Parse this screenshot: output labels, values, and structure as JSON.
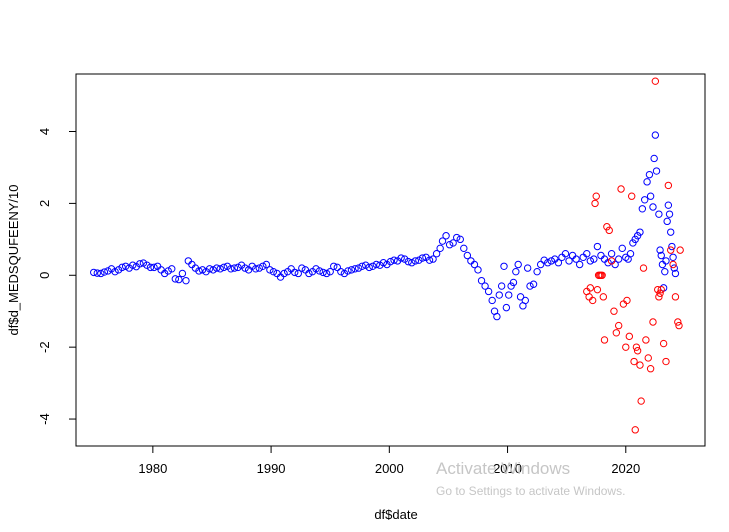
{
  "chart_data": {
    "type": "scatter",
    "title": "",
    "xlabel": "df$date",
    "ylabel": "df$d_MEDSQUFEENY/10",
    "xlim": [
      1973.5,
      2026.7
    ],
    "ylim": [
      -4.75,
      5.6
    ],
    "x_ticks": [
      1980,
      1990,
      2000,
      2010,
      2020
    ],
    "x_tick_labels": [
      "1980",
      "1990",
      "2000",
      "2010",
      "2020"
    ],
    "y_ticks": [
      -4,
      -2,
      0,
      2,
      4
    ],
    "y_tick_labels": [
      "-4",
      "-2",
      "0",
      "2",
      "4"
    ],
    "grid": false,
    "marker": "open-circle",
    "series": [
      {
        "color": "#0000ff",
        "points": [
          [
            1975.0,
            0.08
          ],
          [
            1975.3,
            0.06
          ],
          [
            1975.6,
            0.05
          ],
          [
            1975.9,
            0.09
          ],
          [
            1976.2,
            0.12
          ],
          [
            1976.5,
            0.18
          ],
          [
            1976.8,
            0.1
          ],
          [
            1977.1,
            0.15
          ],
          [
            1977.4,
            0.22
          ],
          [
            1977.7,
            0.25
          ],
          [
            1978.0,
            0.2
          ],
          [
            1978.3,
            0.28
          ],
          [
            1978.6,
            0.24
          ],
          [
            1978.9,
            0.32
          ],
          [
            1979.2,
            0.34
          ],
          [
            1979.5,
            0.28
          ],
          [
            1979.8,
            0.22
          ],
          [
            1980.1,
            0.22
          ],
          [
            1980.4,
            0.25
          ],
          [
            1980.7,
            0.15
          ],
          [
            1981.0,
            0.05
          ],
          [
            1981.3,
            0.12
          ],
          [
            1981.6,
            0.18
          ],
          [
            1981.9,
            -0.1
          ],
          [
            1982.2,
            -0.12
          ],
          [
            1982.5,
            0.05
          ],
          [
            1982.8,
            -0.15
          ],
          [
            1983.0,
            0.4
          ],
          [
            1983.3,
            0.3
          ],
          [
            1983.6,
            0.2
          ],
          [
            1983.9,
            0.12
          ],
          [
            1984.2,
            0.15
          ],
          [
            1984.5,
            0.1
          ],
          [
            1984.8,
            0.18
          ],
          [
            1985.1,
            0.15
          ],
          [
            1985.4,
            0.2
          ],
          [
            1985.7,
            0.18
          ],
          [
            1986.0,
            0.22
          ],
          [
            1986.3,
            0.25
          ],
          [
            1986.6,
            0.18
          ],
          [
            1986.9,
            0.2
          ],
          [
            1987.2,
            0.22
          ],
          [
            1987.5,
            0.28
          ],
          [
            1987.8,
            0.2
          ],
          [
            1988.1,
            0.15
          ],
          [
            1988.4,
            0.25
          ],
          [
            1988.7,
            0.18
          ],
          [
            1989.0,
            0.2
          ],
          [
            1989.3,
            0.25
          ],
          [
            1989.6,
            0.3
          ],
          [
            1989.9,
            0.15
          ],
          [
            1990.2,
            0.1
          ],
          [
            1990.5,
            0.05
          ],
          [
            1990.8,
            -0.05
          ],
          [
            1991.1,
            0.05
          ],
          [
            1991.4,
            0.1
          ],
          [
            1991.7,
            0.18
          ],
          [
            1992.0,
            0.08
          ],
          [
            1992.3,
            0.05
          ],
          [
            1992.6,
            0.2
          ],
          [
            1992.9,
            0.15
          ],
          [
            1993.2,
            0.05
          ],
          [
            1993.5,
            0.1
          ],
          [
            1993.8,
            0.18
          ],
          [
            1994.1,
            0.12
          ],
          [
            1994.4,
            0.08
          ],
          [
            1994.7,
            0.05
          ],
          [
            1995.0,
            0.1
          ],
          [
            1995.3,
            0.25
          ],
          [
            1995.6,
            0.22
          ],
          [
            1995.9,
            0.1
          ],
          [
            1996.2,
            0.05
          ],
          [
            1996.5,
            0.12
          ],
          [
            1996.8,
            0.15
          ],
          [
            1997.1,
            0.18
          ],
          [
            1997.4,
            0.2
          ],
          [
            1997.7,
            0.25
          ],
          [
            1998.0,
            0.28
          ],
          [
            1998.3,
            0.22
          ],
          [
            1998.6,
            0.25
          ],
          [
            1998.9,
            0.3
          ],
          [
            1999.2,
            0.28
          ],
          [
            1999.5,
            0.35
          ],
          [
            1999.8,
            0.3
          ],
          [
            2000.1,
            0.38
          ],
          [
            2000.4,
            0.42
          ],
          [
            2000.7,
            0.4
          ],
          [
            2001.0,
            0.48
          ],
          [
            2001.3,
            0.45
          ],
          [
            2001.6,
            0.38
          ],
          [
            2001.9,
            0.35
          ],
          [
            2002.2,
            0.4
          ],
          [
            2002.5,
            0.42
          ],
          [
            2002.8,
            0.48
          ],
          [
            2003.1,
            0.5
          ],
          [
            2003.4,
            0.42
          ],
          [
            2003.7,
            0.45
          ],
          [
            2004.0,
            0.6
          ],
          [
            2004.3,
            0.75
          ],
          [
            2004.5,
            0.95
          ],
          [
            2004.8,
            1.1
          ],
          [
            2005.1,
            0.85
          ],
          [
            2005.4,
            0.9
          ],
          [
            2005.7,
            1.05
          ],
          [
            2006.0,
            1.0
          ],
          [
            2006.3,
            0.75
          ],
          [
            2006.6,
            0.55
          ],
          [
            2006.9,
            0.4
          ],
          [
            2007.2,
            0.3
          ],
          [
            2007.5,
            0.15
          ],
          [
            2007.8,
            -0.15
          ],
          [
            2008.1,
            -0.3
          ],
          [
            2008.4,
            -0.45
          ],
          [
            2008.7,
            -0.7
          ],
          [
            2008.9,
            -1.0
          ],
          [
            2009.1,
            -1.15
          ],
          [
            2009.3,
            -0.55
          ],
          [
            2009.5,
            -0.3
          ],
          [
            2009.7,
            0.25
          ],
          [
            2009.9,
            -0.9
          ],
          [
            2010.1,
            -0.55
          ],
          [
            2010.3,
            -0.3
          ],
          [
            2010.5,
            -0.2
          ],
          [
            2010.7,
            0.1
          ],
          [
            2010.9,
            0.3
          ],
          [
            2011.1,
            -0.6
          ],
          [
            2011.3,
            -0.85
          ],
          [
            2011.5,
            -0.7
          ],
          [
            2011.7,
            0.2
          ],
          [
            2011.9,
            -0.3
          ],
          [
            2012.2,
            -0.25
          ],
          [
            2012.5,
            0.1
          ],
          [
            2012.8,
            0.3
          ],
          [
            2013.1,
            0.42
          ],
          [
            2013.4,
            0.35
          ],
          [
            2013.7,
            0.4
          ],
          [
            2014.0,
            0.45
          ],
          [
            2014.3,
            0.35
          ],
          [
            2014.6,
            0.5
          ],
          [
            2014.9,
            0.6
          ],
          [
            2015.2,
            0.4
          ],
          [
            2015.5,
            0.55
          ],
          [
            2015.8,
            0.45
          ],
          [
            2016.1,
            0.3
          ],
          [
            2016.4,
            0.5
          ],
          [
            2016.7,
            0.6
          ],
          [
            2017.0,
            0.4
          ],
          [
            2017.3,
            0.45
          ],
          [
            2017.6,
            0.8
          ],
          [
            2017.9,
            0.55
          ],
          [
            2018.2,
            0.45
          ],
          [
            2018.5,
            0.35
          ],
          [
            2018.8,
            0.6
          ],
          [
            2019.1,
            0.3
          ],
          [
            2019.4,
            0.45
          ],
          [
            2019.7,
            0.75
          ],
          [
            2020.0,
            0.5
          ],
          [
            2020.2,
            0.45
          ],
          [
            2020.4,
            0.6
          ],
          [
            2020.6,
            0.9
          ],
          [
            2020.8,
            1.0
          ],
          [
            2021.0,
            1.1
          ],
          [
            2021.2,
            1.2
          ],
          [
            2021.4,
            1.85
          ],
          [
            2021.6,
            2.1
          ],
          [
            2021.8,
            2.6
          ],
          [
            2022.0,
            2.8
          ],
          [
            2022.1,
            2.2
          ],
          [
            2022.3,
            1.9
          ],
          [
            2022.4,
            3.25
          ],
          [
            2022.5,
            3.9
          ],
          [
            2022.6,
            2.9
          ],
          [
            2022.8,
            1.7
          ],
          [
            2022.9,
            0.7
          ],
          [
            2023.0,
            0.55
          ],
          [
            2023.1,
            0.3
          ],
          [
            2023.2,
            -0.35
          ],
          [
            2023.3,
            0.1
          ],
          [
            2023.4,
            0.4
          ],
          [
            2023.5,
            1.5
          ],
          [
            2023.6,
            1.95
          ],
          [
            2023.7,
            1.7
          ],
          [
            2023.8,
            1.2
          ],
          [
            2023.9,
            0.8
          ],
          [
            2024.0,
            0.5
          ],
          [
            2024.1,
            0.2
          ],
          [
            2024.2,
            0.05
          ]
        ]
      },
      {
        "color": "#ff0000",
        "points": [
          [
            2016.7,
            -0.45
          ],
          [
            2016.9,
            -0.6
          ],
          [
            2017.0,
            -0.35
          ],
          [
            2017.2,
            -0.7
          ],
          [
            2017.4,
            2.0
          ],
          [
            2017.5,
            2.2
          ],
          [
            2017.6,
            -0.4
          ],
          [
            2017.7,
            0.0
          ],
          [
            2017.8,
            0.0
          ],
          [
            2017.9,
            0.0
          ],
          [
            2018.0,
            0.0
          ],
          [
            2018.1,
            -0.6
          ],
          [
            2018.2,
            -1.8
          ],
          [
            2018.4,
            1.35
          ],
          [
            2018.6,
            1.25
          ],
          [
            2018.8,
            0.4
          ],
          [
            2019.0,
            -1.0
          ],
          [
            2019.2,
            -1.6
          ],
          [
            2019.4,
            -1.4
          ],
          [
            2019.6,
            2.4
          ],
          [
            2019.8,
            -0.8
          ],
          [
            2020.0,
            -2.0
          ],
          [
            2020.1,
            -0.7
          ],
          [
            2020.3,
            -1.7
          ],
          [
            2020.5,
            2.2
          ],
          [
            2020.7,
            -2.4
          ],
          [
            2020.8,
            -4.3
          ],
          [
            2020.9,
            -2.0
          ],
          [
            2021.0,
            -2.1
          ],
          [
            2021.2,
            -2.5
          ],
          [
            2021.3,
            -3.5
          ],
          [
            2021.5,
            0.2
          ],
          [
            2021.7,
            -1.8
          ],
          [
            2021.9,
            -2.3
          ],
          [
            2022.1,
            -2.6
          ],
          [
            2022.3,
            -1.3
          ],
          [
            2022.5,
            5.4
          ],
          [
            2022.7,
            -0.4
          ],
          [
            2022.8,
            -0.6
          ],
          [
            2022.9,
            -0.5
          ],
          [
            2023.0,
            -0.4
          ],
          [
            2023.2,
            -1.9
          ],
          [
            2023.4,
            -2.4
          ],
          [
            2023.6,
            2.5
          ],
          [
            2023.8,
            0.7
          ],
          [
            2024.0,
            0.3
          ],
          [
            2024.2,
            -0.6
          ],
          [
            2024.4,
            -1.3
          ],
          [
            2024.5,
            -1.4
          ],
          [
            2024.6,
            0.7
          ]
        ]
      }
    ]
  },
  "watermark": {
    "title": "Activate Windows",
    "subtitle": "Go to Settings to activate Windows."
  }
}
